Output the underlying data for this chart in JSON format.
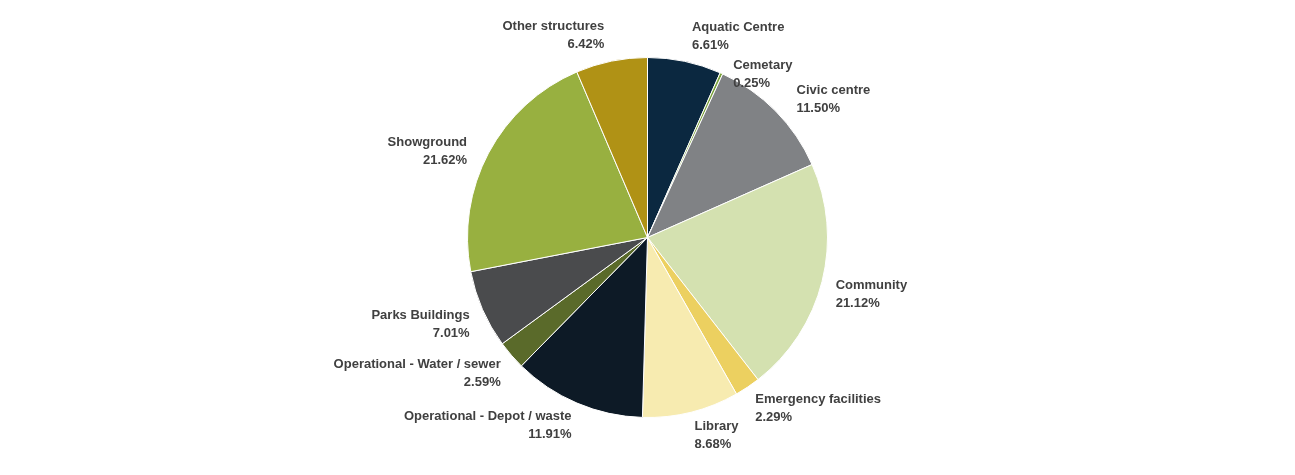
{
  "chart_data": {
    "type": "pie",
    "categories": [
      "Aquatic Centre",
      "Cemetary",
      "Civic centre",
      "Community",
      "Emergency facilities",
      "Library",
      "Operational - Depot / waste",
      "Operational - Water / sewer",
      "Parks Buildings",
      "Showground",
      "Other structures"
    ],
    "values": [
      6.61,
      0.25,
      11.5,
      21.12,
      2.29,
      8.68,
      11.91,
      2.59,
      7.01,
      21.62,
      6.42
    ],
    "value_labels": [
      "6.61%",
      "0.25%",
      "11.50%",
      "21.12%",
      "2.29%",
      "8.68%",
      "11.91%",
      "2.59%",
      "7.01%",
      "21.62%",
      "6.42%"
    ],
    "colors": [
      "#0b2840",
      "#7aa23a",
      "#808285",
      "#d4e1b0",
      "#ecd060",
      "#f7ebb0",
      "#0d1a26",
      "#5a6a2a",
      "#4a4b4d",
      "#98b040",
      "#b09215"
    ]
  }
}
